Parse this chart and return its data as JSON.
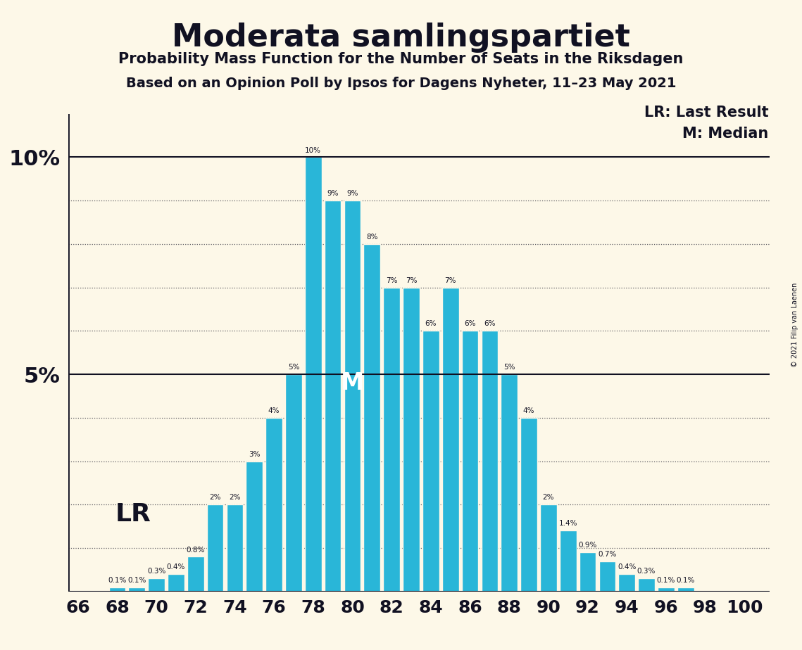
{
  "title": "Moderata samlingspartiet",
  "subtitle1": "Probability Mass Function for the Number of Seats in the Riksdagen",
  "subtitle2": "Based on an Opinion Poll by Ipsos for Dagens Nyheter, 11–23 May 2021",
  "copyright": "© 2021 Filip van Laenen",
  "seats": [
    66,
    67,
    68,
    69,
    70,
    71,
    72,
    73,
    74,
    75,
    76,
    77,
    78,
    79,
    80,
    81,
    82,
    83,
    84,
    85,
    86,
    87,
    88,
    89,
    90,
    91,
    92,
    93,
    94,
    95,
    96,
    97,
    98,
    99,
    100
  ],
  "probabilities": [
    0.0,
    0.0,
    0.1,
    0.1,
    0.3,
    0.4,
    0.8,
    2.0,
    2.0,
    3.0,
    4.0,
    5.0,
    10.0,
    9.0,
    9.0,
    8.0,
    7.0,
    7.0,
    6.0,
    7.0,
    6.0,
    6.0,
    5.0,
    4.0,
    2.0,
    1.4,
    0.9,
    0.7,
    0.4,
    0.3,
    0.1,
    0.1,
    0.0,
    0.0,
    0.0
  ],
  "bar_color": "#29b6d8",
  "background_color": "#fdf8e8",
  "text_color": "#111122",
  "lr_seat": 70,
  "median_seat": 80,
  "lr_label": "LR",
  "median_label": "M",
  "legend_lr": "LR: Last Result",
  "legend_m": "M: Median",
  "ylim": [
    0,
    11.0
  ],
  "xtick_positions": [
    66,
    68,
    70,
    72,
    74,
    76,
    78,
    80,
    82,
    84,
    86,
    88,
    90,
    92,
    94,
    96,
    98,
    100
  ],
  "solid_hlines": [
    0,
    5,
    10
  ],
  "dotted_hlines": [
    1,
    2,
    3,
    4,
    6,
    7,
    8,
    9
  ]
}
